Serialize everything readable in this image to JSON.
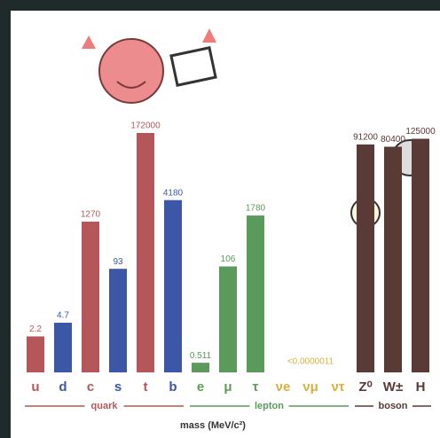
{
  "chart_data": {
    "type": "bar",
    "categories": [
      "u",
      "d",
      "c",
      "s",
      "t",
      "b",
      "e",
      "μ",
      "τ",
      "νe",
      "νμ",
      "ντ",
      "Z⁰",
      "W±",
      "H"
    ],
    "values": [
      2.2,
      4.7,
      1270,
      93,
      172000,
      4180,
      0.511,
      106,
      1780,
      null,
      null,
      null,
      91200,
      80400,
      125000
    ],
    "colors": [
      "#b5575a",
      "#3c57a8",
      "#b5575a",
      "#3c57a8",
      "#b5575a",
      "#3c57a8",
      "#5a9a5a",
      "#5a9a5a",
      "#5a9a5a",
      "#d8b040",
      "#d8b040",
      "#d8b040",
      "#5a3a36",
      "#5a3a36",
      "#5a3a36"
    ],
    "groups": [
      {
        "name": "quark",
        "from": 0,
        "to": 5,
        "color": "#b5575a"
      },
      {
        "name": "lepton",
        "from": 6,
        "to": 11,
        "color": "#5a9a5a"
      },
      {
        "name": "boson",
        "from": 12,
        "to": 14,
        "color": "#5a3a36"
      }
    ],
    "neutrino_label": "<0.0000011",
    "x_label": "mass (MeV/c²)",
    "log_scale": true,
    "ylim": [
      0.3,
      172000
    ]
  }
}
